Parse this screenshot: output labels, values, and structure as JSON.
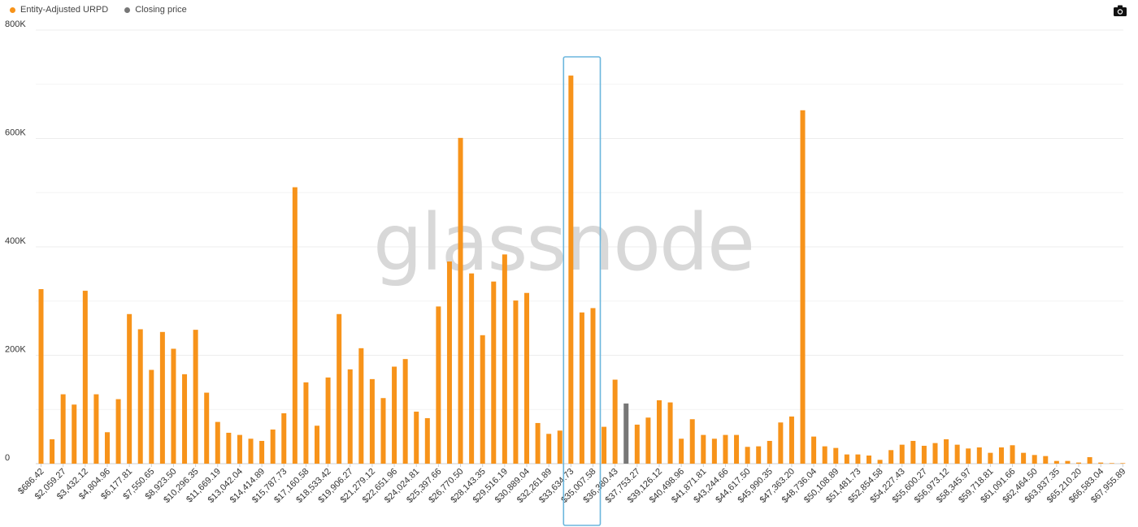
{
  "legend": {
    "items": [
      {
        "label": "Entity-Adjusted URPD",
        "color": "#f7931a"
      },
      {
        "label": "Closing price",
        "color": "#777777"
      }
    ]
  },
  "watermark": "glassnode",
  "toolbar": {
    "camera_icon": "camera-icon"
  },
  "chart_data": {
    "type": "bar",
    "title": "",
    "xlabel": "",
    "ylabel": "",
    "ylim": [
      0,
      800000
    ],
    "yticks": [
      {
        "value": 0,
        "label": "0"
      },
      {
        "value": 200000,
        "label": "200K"
      },
      {
        "value": 400000,
        "label": "400K"
      },
      {
        "value": 600000,
        "label": "600K"
      },
      {
        "value": 800000,
        "label": "800K"
      }
    ],
    "grid": true,
    "legend_position": "top-left",
    "highlight_categories": [
      48,
      49,
      50
    ],
    "xtick_labels": [
      "$686.42",
      "$2,059.27",
      "$3,432.12",
      "$4,804.96",
      "$6,177.81",
      "$7,550.65",
      "$8,923.50",
      "$10,296.35",
      "$11,669.19",
      "$13,042.04",
      "$14,414.89",
      "$15,787.73",
      "$17,160.58",
      "$18,533.42",
      "$19,906.27",
      "$21,279.12",
      "$22,651.96",
      "$24,024.81",
      "$25,397.66",
      "$26,770.50",
      "$28,143.35",
      "$29,516.19",
      "$30,889.04",
      "$32,261.89",
      "$33,634.73",
      "$35,007.58",
      "$36,380.43",
      "$37,753.27",
      "$39,126.12",
      "$40,498.96",
      "$41,871.81",
      "$43,244.66",
      "$44,617.50",
      "$45,990.35",
      "$47,363.20",
      "$48,736.04",
      "$50,108.89",
      "$51,481.73",
      "$52,854.58",
      "$54,227.43",
      "$55,600.27",
      "$56,973.12",
      "$58,345.97",
      "$59,718.81",
      "$61,091.66",
      "$62,464.50",
      "$63,837.35",
      "$65,210.20",
      "$66,583.04",
      "$67,955.89"
    ],
    "series": [
      {
        "name": "Entity-Adjusted URPD",
        "color": "#f7931a",
        "values": [
          322000,
          45000,
          128000,
          109000,
          319000,
          128000,
          58000,
          119000,
          276000,
          248000,
          173000,
          243000,
          212000,
          165000,
          247000,
          131000,
          77000,
          57000,
          53000,
          46000,
          42000,
          63000,
          93000,
          510000,
          150000,
          70000,
          159000,
          276000,
          174000,
          213000,
          156000,
          121000,
          179000,
          193000,
          96000,
          84000,
          290000,
          373000,
          601000,
          351000,
          237000,
          336000,
          386000,
          301000,
          315000,
          75000,
          55000,
          61000,
          716000,
          279000,
          287000,
          68000,
          155000,
          0,
          72000,
          85000,
          117000,
          113000,
          46000,
          82000,
          53000,
          46000,
          53000,
          53000,
          31000,
          32000,
          42000,
          76000,
          87000,
          652000,
          50000,
          32000,
          29000,
          17000,
          17000,
          15000,
          7000,
          25000,
          35000,
          42000,
          33000,
          38000,
          45000,
          35000,
          28000,
          30000,
          20000,
          30000,
          34000,
          20000,
          16000,
          14000,
          5000,
          5000,
          2000,
          12000,
          2000,
          1000,
          1000
        ]
      },
      {
        "name": "Closing price",
        "color": "#777777",
        "values": [
          0,
          0,
          0,
          0,
          0,
          0,
          0,
          0,
          0,
          0,
          0,
          0,
          0,
          0,
          0,
          0,
          0,
          0,
          0,
          0,
          0,
          0,
          0,
          0,
          0,
          0,
          0,
          0,
          0,
          0,
          0,
          0,
          0,
          0,
          0,
          0,
          0,
          0,
          0,
          0,
          0,
          0,
          0,
          0,
          0,
          0,
          0,
          0,
          0,
          0,
          0,
          0,
          0,
          111000,
          0,
          0,
          0,
          0,
          0,
          0,
          0,
          0,
          0,
          0,
          0,
          0,
          0,
          0,
          0,
          0,
          0,
          0,
          0,
          0,
          0,
          0,
          0,
          0,
          0,
          0,
          0,
          0,
          0,
          0,
          0,
          0,
          0,
          0,
          0,
          0,
          0,
          0,
          0,
          0,
          0,
          0,
          0,
          0,
          0
        ]
      }
    ]
  }
}
